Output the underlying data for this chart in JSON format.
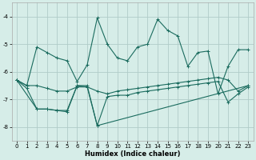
{
  "xlabel": "Humidex (Indice chaleur)",
  "background_color": "#d6ede8",
  "grid_color": "#b0ccc8",
  "line_color": "#1a6b5e",
  "xlim": [
    -0.5,
    23.5
  ],
  "ylim": [
    -8.5,
    -3.5
  ],
  "yticks": [
    -8,
    -7,
    -6,
    -5,
    -4
  ],
  "xticks": [
    0,
    1,
    2,
    3,
    4,
    5,
    6,
    7,
    8,
    9,
    10,
    11,
    12,
    13,
    14,
    15,
    16,
    17,
    18,
    19,
    20,
    21,
    22,
    23
  ],
  "series1_x": [
    0,
    1,
    2,
    3,
    4,
    5,
    6,
    7,
    8,
    9,
    10,
    11,
    12,
    13,
    14,
    15,
    16,
    17,
    18,
    19,
    20,
    21,
    22,
    23
  ],
  "series1_y": [
    -6.3,
    -6.5,
    -5.1,
    -5.3,
    -5.5,
    -5.6,
    -6.35,
    -5.75,
    -4.05,
    -5.0,
    -5.5,
    -5.6,
    -5.1,
    -5.0,
    -4.1,
    -4.5,
    -4.7,
    -5.8,
    -5.3,
    -5.25,
    -6.8,
    -5.8,
    -5.2,
    -5.2
  ],
  "series2_x": [
    0,
    1,
    2,
    3,
    4,
    5,
    6,
    7,
    8,
    9,
    10,
    11,
    12,
    13,
    14,
    15,
    16,
    17,
    18,
    19,
    20,
    21,
    22,
    23
  ],
  "series2_y": [
    -6.3,
    -6.5,
    -6.5,
    -6.6,
    -6.7,
    -6.7,
    -6.55,
    -6.55,
    -6.7,
    -6.8,
    -6.7,
    -6.65,
    -6.6,
    -6.55,
    -6.5,
    -6.45,
    -6.4,
    -6.35,
    -6.3,
    -6.25,
    -6.2,
    -6.3,
    -6.7,
    -6.5
  ],
  "series3_x": [
    0,
    1,
    2,
    3,
    4,
    5,
    6,
    7,
    8,
    9,
    10,
    11,
    12,
    13,
    14,
    15,
    16,
    17,
    18,
    19,
    20,
    21,
    22,
    23
  ],
  "series3_y": [
    -6.3,
    -6.6,
    -7.35,
    -7.35,
    -7.4,
    -7.45,
    -6.5,
    -6.55,
    -7.95,
    -6.9,
    -6.85,
    -6.85,
    -6.75,
    -6.7,
    -6.65,
    -6.6,
    -6.55,
    -6.5,
    -6.45,
    -6.4,
    -6.35,
    -7.1,
    -6.8,
    -6.55
  ],
  "series4_x": [
    0,
    2,
    3,
    4,
    5,
    6,
    7,
    8,
    23
  ],
  "series4_y": [
    -6.3,
    -7.35,
    -7.35,
    -7.4,
    -7.4,
    -6.5,
    -6.5,
    -7.95,
    -6.5
  ]
}
